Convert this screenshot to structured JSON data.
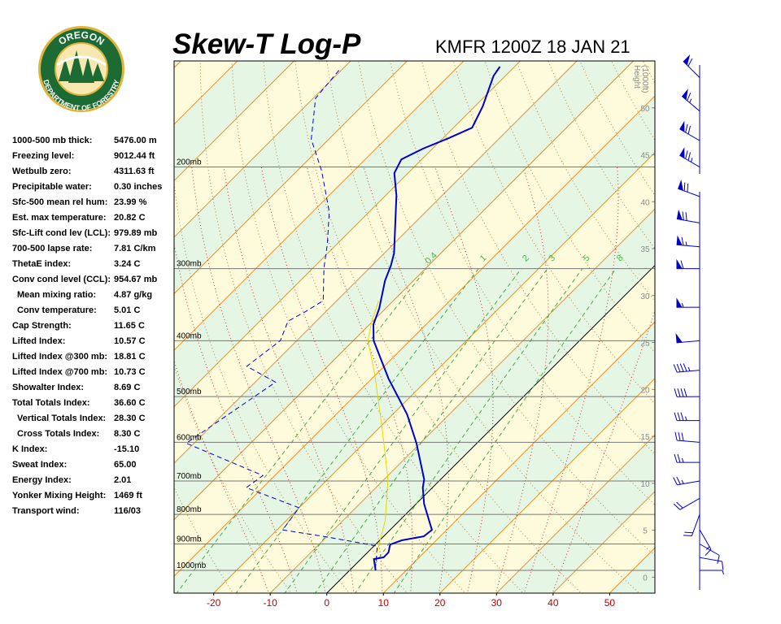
{
  "logo": {
    "top": "OREGON",
    "bottom": "DEPARTMENT OF FORESTRY"
  },
  "indices": [
    {
      "label": "1000-500 mb thick:",
      "value": "5476.00 m"
    },
    {
      "label": "Freezing level:",
      "value": "9012.44 ft"
    },
    {
      "label": "Wetbulb zero:",
      "value": "4311.63 ft"
    },
    {
      "label": "Precipitable water:",
      "value": "0.30 inches"
    },
    {
      "label": "Sfc-500 mean rel hum:",
      "value": "23.99 %"
    },
    {
      "label": "Est. max temperature:",
      "value": "20.82 C"
    },
    {
      "label": "Sfc-Lift cond lev (LCL):",
      "value": "979.89 mb"
    },
    {
      "label": "700-500 lapse rate:",
      "value": "7.81 C/km"
    },
    {
      "label": "ThetaE index:",
      "value": "3.24 C"
    },
    {
      "label": "Conv cond level (CCL):",
      "value": "954.67 mb"
    },
    {
      "label": "Mean mixing ratio:",
      "value": "4.87 g/kg",
      "indent": true
    },
    {
      "label": "Conv temperature:",
      "value": "5.01 C",
      "indent": true
    },
    {
      "label": "Cap Strength:",
      "value": "11.65 C"
    },
    {
      "label": "Lifted Index:",
      "value": "10.57 C"
    },
    {
      "label": "Lifted Index @300 mb:",
      "value": "18.81 C"
    },
    {
      "label": "Lifted Index @700 mb:",
      "value": "10.73 C"
    },
    {
      "label": "Showalter Index:",
      "value": "8.69 C"
    },
    {
      "label": "Total Totals Index:",
      "value": "36.60 C"
    },
    {
      "label": "Vertical Totals Index:",
      "value": "28.30 C",
      "indent": true
    },
    {
      "label": "Cross Totals Index:",
      "value": "8.30 C",
      "indent": true
    },
    {
      "label": "K Index:",
      "value": "-15.10"
    },
    {
      "label": "Sweat Index:",
      "value": "65.00"
    },
    {
      "label": "Energy Index:",
      "value": "2.01"
    },
    {
      "label": "Yonker Mixing Height:",
      "value": "1469 ft"
    },
    {
      "label": "Transport wind:",
      "value": "116/03"
    }
  ],
  "chart_data": {
    "type": "skew-t",
    "title": "Skew-T Log-P",
    "subtitle": "KMFR 1200Z 18 JAN 21",
    "height_label": [
      "Height",
      "(1000ft)"
    ],
    "xlim": [
      -27,
      58
    ],
    "xticks": [
      -20,
      -10,
      0,
      10,
      20,
      30,
      40,
      50
    ],
    "ylim": [
      1095,
      131
    ],
    "yticks": [
      {
        "value": 200,
        "label": "200mb"
      },
      {
        "value": 300,
        "label": "300mb"
      },
      {
        "value": 400,
        "label": "400mb"
      },
      {
        "value": 500,
        "label": "500mb"
      },
      {
        "value": 600,
        "label": "600mb"
      },
      {
        "value": 700,
        "label": "700mb"
      },
      {
        "value": 800,
        "label": "800mb"
      },
      {
        "value": 900,
        "label": "900mb"
      },
      {
        "value": 1000,
        "label": "1000mb"
      }
    ],
    "height_lim": [
      -1.7,
      55
    ],
    "height_ticks": [
      0,
      5,
      10,
      15,
      20,
      25,
      30,
      35,
      40,
      45,
      50
    ],
    "mixing_ratios": [
      0.4,
      1,
      2,
      3,
      5,
      8
    ],
    "profiles": [
      {
        "color": "#0000cc",
        "width": 2,
        "dashed": false,
        "pressure": [
          1000,
          956,
          949,
          931,
          902,
          887,
          873,
          851,
          767,
          719,
          696,
          602,
          537,
          465,
          400,
          375,
          352,
          315,
          296,
          282,
          224,
          205,
          194,
          186,
          178,
          171,
          157,
          139,
          134
        ],
        "values": [
          4.6,
          2.3,
          3.7,
          3.7,
          2.6,
          3.9,
          7.1,
          7.4,
          1.4,
          -1.7,
          -2.9,
          -10.7,
          -17.4,
          -27.1,
          -36.4,
          -39.3,
          -41.1,
          -45,
          -46.7,
          -48.3,
          -58.1,
          -62.4,
          -63.6,
          -61.7,
          -58.9,
          -56.7,
          -58.6,
          -62.1,
          -62.6
        ]
      },
      {
        "color": "#0000cc",
        "width": 1,
        "dashed": true,
        "pressure": [
          994,
          908,
          890,
          873,
          851,
          779,
          719,
          685,
          602,
          472,
          443,
          400,
          370,
          356,
          341,
          299,
          272,
          239,
          203,
          179,
          152,
          136
        ],
        "values": [
          4.3,
          0.6,
          -5,
          -10.7,
          -19,
          -20,
          -32.9,
          -32.1,
          -51.4,
          -46.4,
          -54.3,
          -52.9,
          -55,
          -53.6,
          -52.4,
          -58.1,
          -61.7,
          -67.1,
          -75.7,
          -83.1,
          -89.6,
          -90.4
        ]
      },
      {
        "color": "#e6d800",
        "width": 1,
        "dashed": false,
        "pressure": [
          931,
          818,
          696,
          573,
          457,
          400,
          372,
          341
        ],
        "values": [
          1.7,
          -2.6,
          -9.3,
          -18.9,
          -30.3,
          -37.4,
          -40,
          -42.6
        ]
      }
    ],
    "winds": {
      "color": "#0000cc",
      "pressure": [
        1000,
        950,
        900,
        850,
        800,
        750,
        700,
        650,
        600,
        550,
        500,
        450,
        400,
        350,
        300,
        275,
        250,
        225,
        200,
        180,
        160,
        140
      ],
      "direction": [
        90,
        100,
        120,
        150,
        200,
        240,
        260,
        270,
        275,
        270,
        270,
        265,
        265,
        270,
        270,
        275,
        280,
        290,
        300,
        300,
        310,
        315
      ],
      "speed": [
        5,
        10,
        10,
        15,
        20,
        20,
        25,
        25,
        30,
        35,
        40,
        45,
        50,
        55,
        60,
        65,
        70,
        70,
        75,
        70,
        65,
        60
      ]
    }
  }
}
